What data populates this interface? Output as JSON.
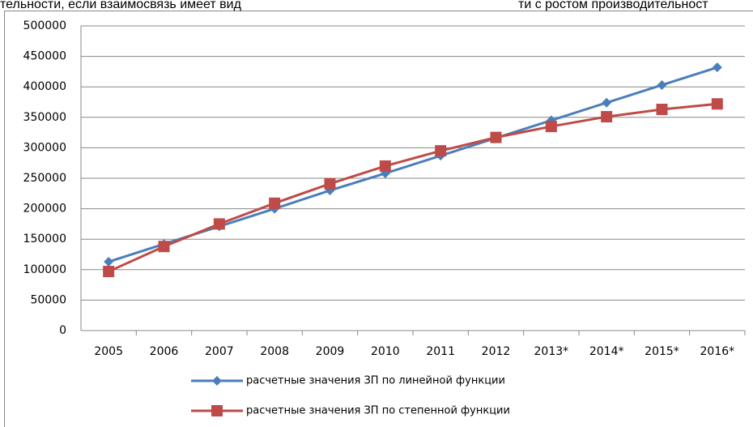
{
  "header": {
    "left": "тельности, если взаимосвязь имеет вид",
    "right": "ти с ростом производительност"
  },
  "chart_data": {
    "type": "line",
    "categories": [
      "2005",
      "2006",
      "2007",
      "2008",
      "2009",
      "2010",
      "2011",
      "2012",
      "2013*",
      "2014*",
      "2015*",
      "2016*"
    ],
    "series": [
      {
        "name": "расчетные значения ЗП по линейной функции",
        "color": "#4a7ebb",
        "marker": "diamond",
        "values": [
          113000,
          142000,
          171000,
          200000,
          230000,
          258000,
          287000,
          316000,
          345000,
          374000,
          403000,
          432000
        ]
      },
      {
        "name": "расчетные значения ЗП по степенной функции",
        "color": "#be4b48",
        "marker": "square",
        "values": [
          97000,
          138000,
          175000,
          209000,
          241000,
          270000,
          295000,
          317000,
          335000,
          351000,
          363000,
          372000
        ]
      }
    ],
    "ylim": [
      0,
      500000
    ],
    "yticks": [
      0,
      50000,
      100000,
      150000,
      200000,
      250000,
      300000,
      350000,
      400000,
      450000,
      500000
    ],
    "grid": true
  }
}
